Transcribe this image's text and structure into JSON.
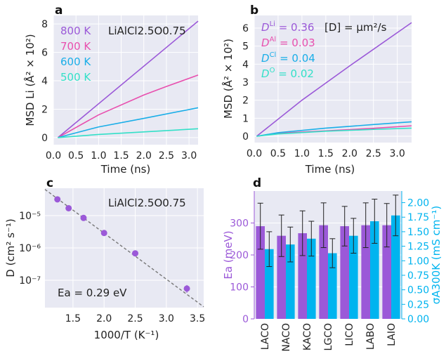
{
  "colors": {
    "purple": "#9b59d8",
    "pink": "#e84fae",
    "blue": "#1aaee8",
    "cyan": "#33e0c8",
    "bar_purple": "#9b59d8",
    "bar_blue": "#00b4ef",
    "bg": "#e8e9f3",
    "fit": "#777777"
  },
  "chart_data": [
    {
      "panel": "a",
      "type": "line",
      "material": "LiAlCl2.5O0.75",
      "xlabel": "Time (ns)",
      "ylabel": "MSD Li (Å² × 10²)",
      "xlim": [
        0,
        3.2
      ],
      "ylim": [
        -0.5,
        8.6
      ],
      "xticks": [
        "0.0",
        "0.5",
        "1.0",
        "1.5",
        "2.0",
        "2.5",
        "3.0"
      ],
      "yticks": [
        "0",
        "2",
        "4",
        "6",
        "8"
      ],
      "series": [
        {
          "name": "800 K",
          "color": "purple",
          "x": [
            0.1,
            3.2
          ],
          "y": [
            0,
            8.2
          ]
        },
        {
          "name": "700 K",
          "color": "pink",
          "x": [
            0.1,
            1,
            2,
            2.5,
            3.2
          ],
          "y": [
            0,
            1.6,
            3.0,
            3.6,
            4.4
          ]
        },
        {
          "name": "600 K",
          "color": "blue",
          "x": [
            0.1,
            1,
            2,
            3.2
          ],
          "y": [
            0,
            0.75,
            1.35,
            2.1
          ]
        },
        {
          "name": "500 K",
          "color": "cyan",
          "x": [
            0.1,
            1,
            2,
            3.2
          ],
          "y": [
            0,
            0.22,
            0.4,
            0.62
          ]
        }
      ]
    },
    {
      "panel": "b",
      "type": "line",
      "xlabel": "Time (ns)",
      "ylabel": "MSD (Å² × 10²)",
      "xlim": [
        0,
        3.3
      ],
      "ylim": [
        -0.35,
        6.7
      ],
      "xticks": [
        "0.0",
        "0.5",
        "1.0",
        "1.5",
        "2.0",
        "2.5",
        "3.0"
      ],
      "yticks": [
        "0",
        "1",
        "2",
        "3",
        "4",
        "5",
        "6"
      ],
      "units": "[D] = μm²/s",
      "series": [
        {
          "name": "Li",
          "D": "0.36",
          "color": "purple",
          "x": [
            0.05,
            1,
            2,
            3.3
          ],
          "y": [
            0,
            2.0,
            3.9,
            6.3
          ]
        },
        {
          "name": "Al",
          "D": "0.03",
          "color": "pink",
          "x": [
            0.05,
            0.5,
            1.5,
            2.5,
            3.3
          ],
          "y": [
            0,
            0.17,
            0.3,
            0.44,
            0.58
          ]
        },
        {
          "name": "Cl",
          "D": "0.04",
          "color": "blue",
          "x": [
            0.05,
            0.5,
            1.5,
            2.5,
            3.3
          ],
          "y": [
            0,
            0.2,
            0.45,
            0.65,
            0.8
          ]
        },
        {
          "name": "O",
          "D": "0.02",
          "color": "cyan",
          "x": [
            0.05,
            0.5,
            1.5,
            2.5,
            3.3
          ],
          "y": [
            0,
            0.13,
            0.28,
            0.38,
            0.45
          ]
        }
      ]
    },
    {
      "panel": "c",
      "type": "scatter",
      "material": "LiAlCl2.5O0.75",
      "xlabel": "1000/T (K⁻¹)",
      "ylabel": "D (cm² s⁻¹)",
      "xlim": [
        1.05,
        3.6
      ],
      "ylog_lim": [
        -7.85,
        -4.15
      ],
      "xticks": [
        "1.5",
        "2.0",
        "2.5",
        "3.0",
        "3.5"
      ],
      "yticks": [
        "10⁻⁵",
        "10⁻⁶",
        "10⁻⁷"
      ],
      "annotation": "Ea = 0.29 eV",
      "points": [
        {
          "x": 1.25,
          "y": "3.2e-5"
        },
        {
          "x": 1.43,
          "y": "1.7e-5"
        },
        {
          "x": 1.67,
          "y": "8.5e-6"
        },
        {
          "x": 2.0,
          "y": "2.9e-6"
        },
        {
          "x": 2.5,
          "y": "6.8e-7"
        },
        {
          "x": 3.33,
          "y": "5.5e-8"
        }
      ],
      "fit": {
        "x": [
          1.05,
          3.6
        ],
        "y": [
          "6.5e-5",
          "1.5e-8"
        ]
      }
    },
    {
      "panel": "d",
      "type": "bar",
      "categories": [
        "LACO",
        "NACO",
        "KACO",
        "LGCO",
        "LICO",
        "LABO",
        "LAIO"
      ],
      "left_label": "Ea (meV)",
      "right_label": "σA300K (mS cm⁻¹)",
      "left_lim": [
        0,
        400
      ],
      "right_lim": [
        0,
        2.2
      ],
      "left_ticks": [
        "0",
        "100",
        "200",
        "300"
      ],
      "right_ticks": [
        "0.00",
        "0.25",
        "0.50",
        "0.75",
        "1.00",
        "1.25",
        "1.50",
        "1.75",
        "2.00"
      ],
      "series": [
        {
          "name": "Ea",
          "axis": "left",
          "color": "bar_purple",
          "values": [
            290,
            260,
            268,
            293,
            290,
            293,
            293
          ],
          "errors": [
            72,
            65,
            70,
            70,
            62,
            70,
            68
          ]
        },
        {
          "name": "sigma",
          "axis": "right",
          "color": "bar_blue",
          "values": [
            1.2,
            1.28,
            1.38,
            1.13,
            1.43,
            1.68,
            1.78
          ],
          "errors": [
            0.3,
            0.3,
            0.3,
            0.25,
            0.3,
            0.38,
            0.35
          ]
        }
      ]
    }
  ]
}
